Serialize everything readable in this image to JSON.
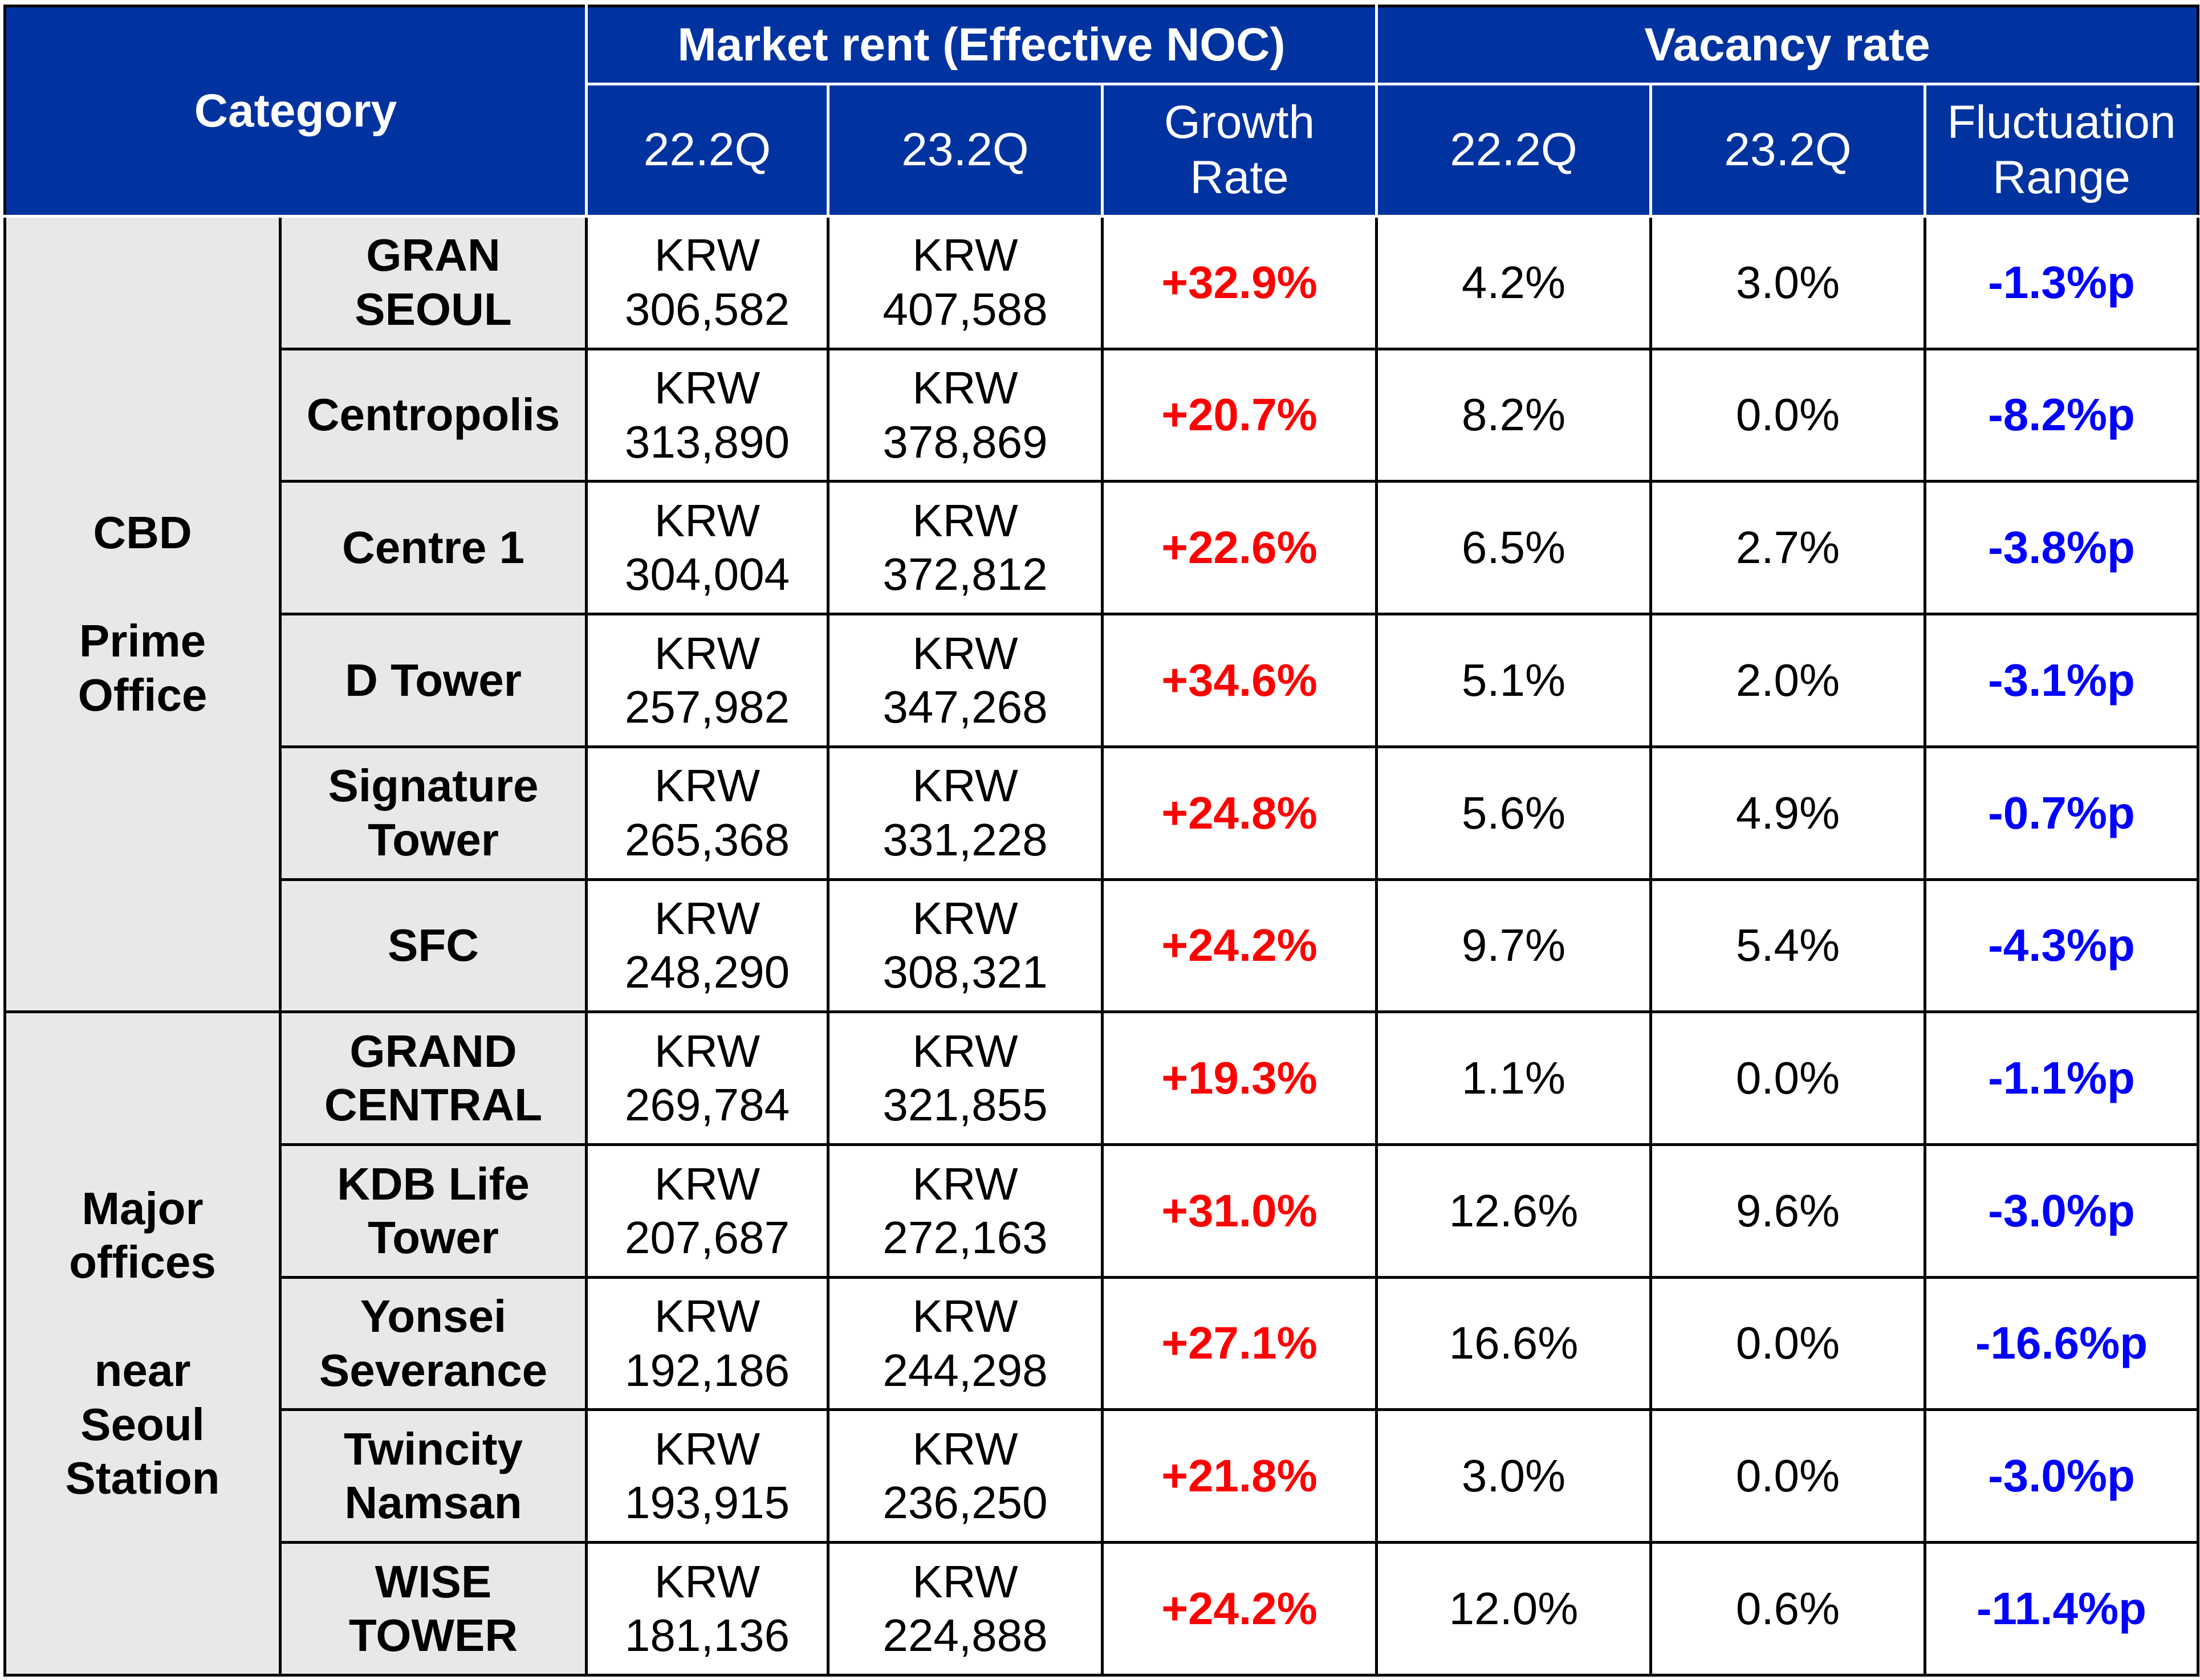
{
  "header": {
    "category": "Category",
    "market_rent": "Market rent (Effective NOC)",
    "vacancy_rate": "Vacancy rate",
    "rent_q1": "22.2Q",
    "rent_q2": "23.2Q",
    "growth_line1": "Growth",
    "growth_line2": "Rate",
    "vac_q1": "22.2Q",
    "vac_q2": "23.2Q",
    "fluct_line1": "Fluctuation",
    "fluct_line2": "Range"
  },
  "groups": [
    {
      "label_lines_a": [
        "CBD"
      ],
      "label_lines_b": [
        "Prime",
        "Office"
      ],
      "rows": [
        {
          "name": [
            "GRAN",
            "SEOUL"
          ],
          "rent_22": [
            "KRW",
            "306,582"
          ],
          "rent_23": [
            "KRW",
            "407,588"
          ],
          "growth": "+32.9%",
          "vac_22": "4.2%",
          "vac_23": "3.0%",
          "fluct": "-1.3%p"
        },
        {
          "name": [
            "Centropolis"
          ],
          "rent_22": [
            "KRW",
            "313,890"
          ],
          "rent_23": [
            "KRW",
            "378,869"
          ],
          "growth": "+20.7%",
          "vac_22": "8.2%",
          "vac_23": "0.0%",
          "fluct": "-8.2%p"
        },
        {
          "name": [
            "Centre 1"
          ],
          "rent_22": [
            "KRW",
            "304,004"
          ],
          "rent_23": [
            "KRW",
            "372,812"
          ],
          "growth": "+22.6%",
          "vac_22": "6.5%",
          "vac_23": "2.7%",
          "fluct": "-3.8%p"
        },
        {
          "name": [
            "D Tower"
          ],
          "rent_22": [
            "KRW",
            "257,982"
          ],
          "rent_23": [
            "KRW",
            "347,268"
          ],
          "growth": "+34.6%",
          "vac_22": "5.1%",
          "vac_23": "2.0%",
          "fluct": "-3.1%p"
        },
        {
          "name": [
            "Signature",
            "Tower"
          ],
          "rent_22": [
            "KRW",
            "265,368"
          ],
          "rent_23": [
            "KRW",
            "331,228"
          ],
          "growth": "+24.8%",
          "vac_22": "5.6%",
          "vac_23": "4.9%",
          "fluct": "-0.7%p"
        },
        {
          "name": [
            "SFC"
          ],
          "rent_22": [
            "KRW",
            "248,290"
          ],
          "rent_23": [
            "KRW",
            "308,321"
          ],
          "growth": "+24.2%",
          "vac_22": "9.7%",
          "vac_23": "5.4%",
          "fluct": "-4.3%p"
        }
      ]
    },
    {
      "label_lines_a": [
        "Major",
        "offices"
      ],
      "label_lines_b": [
        "near",
        "Seoul",
        "Station"
      ],
      "rows": [
        {
          "name": [
            "GRAND",
            "CENTRAL"
          ],
          "rent_22": [
            "KRW",
            "269,784"
          ],
          "rent_23": [
            "KRW",
            "321,855"
          ],
          "growth": "+19.3%",
          "vac_22": "1.1%",
          "vac_23": "0.0%",
          "fluct": "-1.1%p"
        },
        {
          "name": [
            "KDB Life",
            "Tower"
          ],
          "rent_22": [
            "KRW",
            "207,687"
          ],
          "rent_23": [
            "KRW",
            "272,163"
          ],
          "growth": "+31.0%",
          "vac_22": "12.6%",
          "vac_23": "9.6%",
          "fluct": "-3.0%p"
        },
        {
          "name": [
            "Yonsei",
            "Severance"
          ],
          "rent_22": [
            "KRW",
            "192,186"
          ],
          "rent_23": [
            "KRW",
            "244,298"
          ],
          "growth": "+27.1%",
          "vac_22": "16.6%",
          "vac_23": "0.0%",
          "fluct": "-16.6%p"
        },
        {
          "name": [
            "Twincity",
            "Namsan"
          ],
          "rent_22": [
            "KRW",
            "193,915"
          ],
          "rent_23": [
            "KRW",
            "236,250"
          ],
          "growth": "+21.8%",
          "vac_22": "3.0%",
          "vac_23": "0.0%",
          "fluct": "-3.0%p"
        },
        {
          "name": [
            "WISE",
            "TOWER"
          ],
          "rent_22": [
            "KRW",
            "181,136"
          ],
          "rent_23": [
            "KRW",
            "224,888"
          ],
          "growth": "+24.2%",
          "vac_22": "12.0%",
          "vac_23": "0.6%",
          "fluct": "-11.4%p"
        }
      ]
    }
  ],
  "colors": {
    "header_bg": "#0033a0",
    "label_bg": "#e8e8e8",
    "growth_red": "#ff0000",
    "fluct_blue": "#0000ff"
  }
}
